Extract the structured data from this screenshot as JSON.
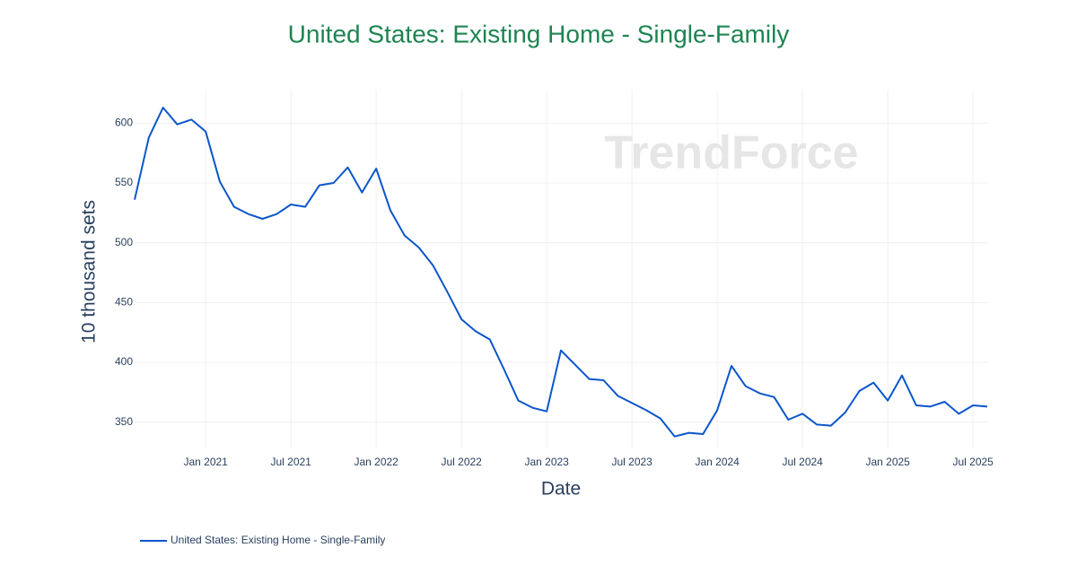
{
  "chart_data": {
    "type": "line",
    "title": "United States: Existing Home - Single-Family",
    "watermark": "TrendForce",
    "x_label": "Date",
    "y_label": "10 thousand sets",
    "x": [
      "2020-08",
      "2020-09",
      "2020-10",
      "2020-11",
      "2020-12",
      "2021-01",
      "2021-02",
      "2021-03",
      "2021-04",
      "2021-05",
      "2021-06",
      "2021-07",
      "2021-08",
      "2021-09",
      "2021-10",
      "2021-11",
      "2021-12",
      "2022-01",
      "2022-02",
      "2022-03",
      "2022-04",
      "2022-05",
      "2022-06",
      "2022-07",
      "2022-08",
      "2022-09",
      "2022-10",
      "2022-11",
      "2022-12",
      "2023-01",
      "2023-02",
      "2023-03",
      "2023-04",
      "2023-05",
      "2023-06",
      "2023-07",
      "2023-08",
      "2023-09",
      "2023-10",
      "2023-11",
      "2023-12",
      "2024-01",
      "2024-02",
      "2024-03",
      "2024-04",
      "2024-05",
      "2024-06",
      "2024-07",
      "2024-08",
      "2024-09",
      "2024-10",
      "2024-11",
      "2024-12",
      "2025-01",
      "2025-02",
      "2025-03",
      "2025-04",
      "2025-05",
      "2025-06",
      "2025-07",
      "2025-08"
    ],
    "series": [
      {
        "name": "United States: Existing Home - Single-Family",
        "color": "#0b56cc",
        "values": [
          536,
          588,
          613,
          599,
          603,
          593,
          551,
          530,
          524,
          520,
          524,
          532,
          530,
          548,
          550,
          563,
          542,
          562,
          527,
          506,
          496,
          481,
          459,
          436,
          426,
          419,
          394,
          368,
          362,
          359,
          410,
          398,
          386,
          385,
          372,
          366,
          360,
          353,
          338,
          341,
          340,
          360,
          397,
          380,
          374,
          371,
          352,
          357,
          348,
          347,
          358,
          376,
          383,
          368,
          389,
          364,
          363,
          367,
          357,
          364,
          363
        ]
      }
    ],
    "xlim": [
      "2020-08",
      "2025-08"
    ],
    "xticks": [
      {
        "value": "2021-01",
        "label": "Jan 2021"
      },
      {
        "value": "2021-07",
        "label": "Jul 2021"
      },
      {
        "value": "2022-01",
        "label": "Jan 2022"
      },
      {
        "value": "2022-07",
        "label": "Jul 2022"
      },
      {
        "value": "2023-01",
        "label": "Jan 2023"
      },
      {
        "value": "2023-07",
        "label": "Jul 2023"
      },
      {
        "value": "2024-01",
        "label": "Jan 2024"
      },
      {
        "value": "2024-07",
        "label": "Jul 2024"
      },
      {
        "value": "2025-01",
        "label": "Jan 2025"
      },
      {
        "value": "2025-07",
        "label": "Jul 2025"
      }
    ],
    "ylim": [
      328,
      628
    ],
    "yticks": [
      350,
      400,
      450,
      500,
      550,
      600
    ],
    "grid": true,
    "legend": "bottom-left"
  }
}
